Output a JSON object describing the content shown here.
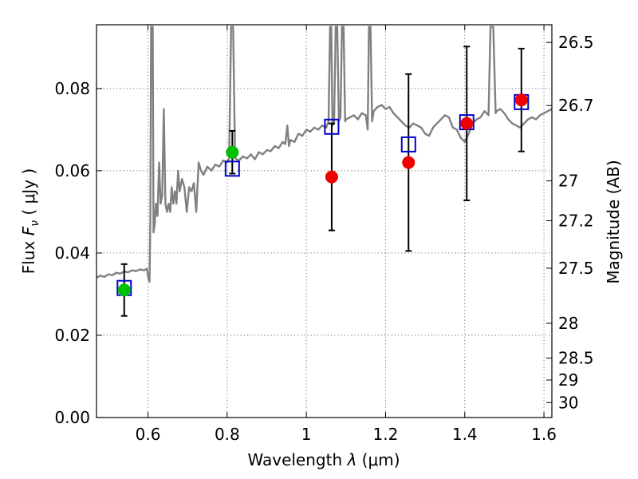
{
  "chart_data": {
    "type": "scatter",
    "title": "",
    "xlabel_prefix": "Wavelength  ",
    "xlabel_symbol": "λ",
    "xlabel_units": " (μm)",
    "ylabel_prefix": "Flux  ",
    "ylabel_symbol": "F",
    "ylabel_subscript": "ν",
    "ylabel_units": "  ( μJy )",
    "y2label": "Magnitude (AB)",
    "xlim": [
      0.47,
      1.62
    ],
    "ylim": [
      0.0,
      0.0955
    ],
    "xticks": [
      0.6,
      0.8,
      1.0,
      1.2,
      1.4,
      1.6
    ],
    "xtick_labels": [
      "0.6",
      "0.8",
      "1",
      "1.2",
      "1.4",
      "1.6"
    ],
    "yticks": [
      0.0,
      0.02,
      0.04,
      0.06,
      0.08
    ],
    "ytick_labels": [
      "0.00",
      "0.02",
      "0.04",
      "0.06",
      "0.08"
    ],
    "y2ticks": [
      26.5,
      26.7,
      27,
      27.2,
      27.5,
      28,
      28.5,
      29,
      30
    ],
    "y2tick_labels": [
      "26.5",
      "26.7",
      "27",
      "27.2",
      "27.5",
      "28",
      "28.5",
      "29",
      "30"
    ],
    "grid": true,
    "colors": {
      "spectrum": "#808080",
      "model_box": "#0000cc",
      "green": "#00c000",
      "red": "#ee0000",
      "errorbar": "#000000"
    },
    "series": [
      {
        "name": "model spectrum",
        "kind": "line",
        "points": [
          [
            0.47,
            0.034
          ],
          [
            0.48,
            0.0345
          ],
          [
            0.49,
            0.0342
          ],
          [
            0.5,
            0.0348
          ],
          [
            0.51,
            0.0346
          ],
          [
            0.52,
            0.0352
          ],
          [
            0.53,
            0.035
          ],
          [
            0.54,
            0.0355
          ],
          [
            0.55,
            0.0353
          ],
          [
            0.56,
            0.0358
          ],
          [
            0.57,
            0.0356
          ],
          [
            0.58,
            0.036
          ],
          [
            0.59,
            0.0358
          ],
          [
            0.597,
            0.0362
          ],
          [
            0.601,
            0.034
          ],
          [
            0.604,
            0.033
          ],
          [
            0.606,
            0.048
          ],
          [
            0.608,
            0.095
          ],
          [
            0.612,
            0.095
          ],
          [
            0.614,
            0.045
          ],
          [
            0.617,
            0.047
          ],
          [
            0.62,
            0.052
          ],
          [
            0.624,
            0.049
          ],
          [
            0.628,
            0.062
          ],
          [
            0.632,
            0.052
          ],
          [
            0.636,
            0.054
          ],
          [
            0.64,
            0.075
          ],
          [
            0.644,
            0.052
          ],
          [
            0.648,
            0.05
          ],
          [
            0.652,
            0.052
          ],
          [
            0.656,
            0.05
          ],
          [
            0.66,
            0.056
          ],
          [
            0.664,
            0.052
          ],
          [
            0.668,
            0.055
          ],
          [
            0.672,
            0.052
          ],
          [
            0.676,
            0.06
          ],
          [
            0.68,
            0.055
          ],
          [
            0.686,
            0.058
          ],
          [
            0.692,
            0.056
          ],
          [
            0.698,
            0.05
          ],
          [
            0.704,
            0.056
          ],
          [
            0.71,
            0.055
          ],
          [
            0.716,
            0.057
          ],
          [
            0.722,
            0.05
          ],
          [
            0.728,
            0.062
          ],
          [
            0.734,
            0.06
          ],
          [
            0.74,
            0.059
          ],
          [
            0.75,
            0.061
          ],
          [
            0.76,
            0.06
          ],
          [
            0.77,
            0.0615
          ],
          [
            0.78,
            0.061
          ],
          [
            0.79,
            0.0625
          ],
          [
            0.8,
            0.062
          ],
          [
            0.805,
            0.063
          ],
          [
            0.81,
            0.095
          ],
          [
            0.815,
            0.095
          ],
          [
            0.82,
            0.063
          ],
          [
            0.83,
            0.0625
          ],
          [
            0.84,
            0.0635
          ],
          [
            0.85,
            0.063
          ],
          [
            0.86,
            0.064
          ],
          [
            0.87,
            0.0628
          ],
          [
            0.88,
            0.0645
          ],
          [
            0.89,
            0.064
          ],
          [
            0.9,
            0.065
          ],
          [
            0.91,
            0.0648
          ],
          [
            0.92,
            0.066
          ],
          [
            0.93,
            0.0655
          ],
          [
            0.94,
            0.067
          ],
          [
            0.947,
            0.0665
          ],
          [
            0.952,
            0.071
          ],
          [
            0.956,
            0.066
          ],
          [
            0.96,
            0.0675
          ],
          [
            0.97,
            0.067
          ],
          [
            0.98,
            0.069
          ],
          [
            0.99,
            0.0685
          ],
          [
            1.0,
            0.07
          ],
          [
            1.01,
            0.0695
          ],
          [
            1.02,
            0.0705
          ],
          [
            1.03,
            0.07
          ],
          [
            1.04,
            0.071
          ],
          [
            1.05,
            0.0705
          ],
          [
            1.056,
            0.072
          ],
          [
            1.06,
            0.095
          ],
          [
            1.063,
            0.095
          ],
          [
            1.066,
            0.071
          ],
          [
            1.07,
            0.0715
          ],
          [
            1.074,
            0.095
          ],
          [
            1.078,
            0.095
          ],
          [
            1.082,
            0.072
          ],
          [
            1.086,
            0.073
          ],
          [
            1.09,
            0.095
          ],
          [
            1.094,
            0.095
          ],
          [
            1.098,
            0.072
          ],
          [
            1.1,
            0.0725
          ],
          [
            1.11,
            0.073
          ],
          [
            1.12,
            0.0735
          ],
          [
            1.13,
            0.0725
          ],
          [
            1.14,
            0.074
          ],
          [
            1.15,
            0.0735
          ],
          [
            1.155,
            0.07
          ],
          [
            1.158,
            0.095
          ],
          [
            1.162,
            0.095
          ],
          [
            1.166,
            0.072
          ],
          [
            1.17,
            0.0745
          ],
          [
            1.18,
            0.0755
          ],
          [
            1.19,
            0.076
          ],
          [
            1.2,
            0.075
          ],
          [
            1.21,
            0.0755
          ],
          [
            1.22,
            0.074
          ],
          [
            1.23,
            0.073
          ],
          [
            1.24,
            0.072
          ],
          [
            1.25,
            0.071
          ],
          [
            1.26,
            0.0705
          ],
          [
            1.27,
            0.0715
          ],
          [
            1.28,
            0.071
          ],
          [
            1.29,
            0.0705
          ],
          [
            1.3,
            0.069
          ],
          [
            1.31,
            0.0685
          ],
          [
            1.32,
            0.0705
          ],
          [
            1.33,
            0.0715
          ],
          [
            1.34,
            0.0725
          ],
          [
            1.35,
            0.0735
          ],
          [
            1.36,
            0.073
          ],
          [
            1.37,
            0.0705
          ],
          [
            1.38,
            0.07
          ],
          [
            1.39,
            0.068
          ],
          [
            1.4,
            0.067
          ],
          [
            1.41,
            0.069
          ],
          [
            1.42,
            0.0715
          ],
          [
            1.43,
            0.0725
          ],
          [
            1.44,
            0.073
          ],
          [
            1.45,
            0.0745
          ],
          [
            1.46,
            0.0735
          ],
          [
            1.465,
            0.095
          ],
          [
            1.472,
            0.095
          ],
          [
            1.478,
            0.074
          ],
          [
            1.48,
            0.0745
          ],
          [
            1.49,
            0.075
          ],
          [
            1.5,
            0.074
          ],
          [
            1.51,
            0.0725
          ],
          [
            1.52,
            0.0715
          ],
          [
            1.53,
            0.071
          ],
          [
            1.54,
            0.0705
          ],
          [
            1.55,
            0.0715
          ],
          [
            1.56,
            0.0725
          ],
          [
            1.57,
            0.073
          ],
          [
            1.58,
            0.0725
          ],
          [
            1.59,
            0.0735
          ],
          [
            1.6,
            0.074
          ],
          [
            1.61,
            0.0745
          ],
          [
            1.62,
            0.075
          ]
        ]
      },
      {
        "name": "model photometry",
        "kind": "square",
        "points": [
          [
            0.54,
            0.0315
          ],
          [
            0.813,
            0.0605
          ],
          [
            1.064,
            0.0707
          ],
          [
            1.258,
            0.0664
          ],
          [
            1.405,
            0.0718
          ],
          [
            1.543,
            0.0767
          ]
        ]
      },
      {
        "name": "green measurements",
        "kind": "circle",
        "points": [
          [
            0.54,
            0.031
          ],
          [
            0.813,
            0.0645
          ]
        ],
        "errors": [
          0.0063,
          0.0052
        ]
      },
      {
        "name": "red measurements",
        "kind": "circle",
        "points": [
          [
            1.064,
            0.0585
          ],
          [
            1.258,
            0.062
          ],
          [
            1.405,
            0.0715
          ],
          [
            1.543,
            0.0772
          ]
        ],
        "errors": [
          0.013,
          0.0215,
          0.0187,
          0.0125
        ]
      }
    ]
  }
}
